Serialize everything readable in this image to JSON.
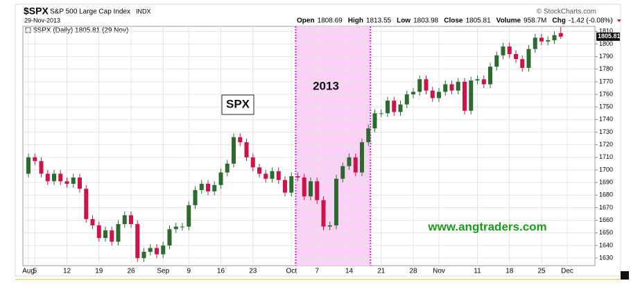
{
  "chart_data": {
    "type": "candlestick",
    "symbol": "$SPX",
    "name": "S&P 500 Large Cap Index",
    "exchange": "INDX",
    "date": "29-Nov-2013",
    "source": "© StockCharts.com",
    "quote": [
      {
        "label": "Open",
        "value": 1808.69
      },
      {
        "label": "High",
        "value": 1813.55
      },
      {
        "label": "Low",
        "value": 1803.98
      },
      {
        "label": "Close",
        "value": 1805.81
      },
      {
        "label": "Volume",
        "value": "958.7M"
      },
      {
        "label": "Chg",
        "value": "-1.42 (-0.08%)"
      }
    ],
    "legend_text": "$SPX (Daily) 1805.81 (29 Nov)",
    "categories": [
      "Aug",
      "5",
      null,
      null,
      null,
      null,
      "12",
      null,
      null,
      null,
      null,
      "19",
      null,
      null,
      null,
      null,
      "26",
      null,
      null,
      null,
      null,
      "Sep",
      null,
      null,
      null,
      "9",
      null,
      null,
      null,
      null,
      "16",
      null,
      null,
      null,
      null,
      "23",
      null,
      null,
      null,
      null,
      null,
      "Oct",
      null,
      null,
      null,
      "7",
      null,
      null,
      null,
      null,
      "14",
      null,
      null,
      null,
      null,
      "21",
      null,
      null,
      null,
      null,
      "28",
      null,
      null,
      null,
      "Nov",
      null,
      null,
      null,
      null,
      null,
      "11",
      null,
      null,
      null,
      null,
      "18",
      null,
      null,
      null,
      null,
      "25",
      null,
      null,
      null,
      "Dec"
    ],
    "open": [
      1697,
      1710,
      1707,
      1697,
      1691,
      1697,
      1691,
      1689,
      1694,
      1685,
      1661,
      1656,
      1646,
      1652,
      1643,
      1657,
      1664,
      1657,
      1630,
      1635,
      1638,
      1633,
      1640,
      1653,
      1655,
      1655,
      1672,
      1684,
      1689,
      1683,
      1688,
      1698,
      1705,
      1726,
      1722,
      1710,
      1702,
      1697,
      1693,
      1699,
      1692,
      1682,
      1695,
      1694,
      1679,
      1691,
      1676,
      1655,
      1656,
      1693,
      1703,
      1710,
      1698,
      1722,
      1733,
      1745,
      1745,
      1755,
      1746,
      1752,
      1760,
      1762,
      1772,
      1763,
      1757,
      1762,
      1768,
      1763,
      1770,
      1747,
      1771,
      1772,
      1768,
      1782,
      1791,
      1798,
      1792,
      1788,
      1781,
      1796,
      1805,
      1802,
      1803,
      1808.69,
      null
    ],
    "high": [
      1713,
      1713,
      1710,
      1700,
      1700,
      1700,
      1694,
      1697,
      1697,
      1688,
      1664,
      1659,
      1655,
      1655,
      1660,
      1667,
      1667,
      1660,
      1638,
      1641,
      1641,
      1643,
      1656,
      1658,
      1658,
      1675,
      1687,
      1692,
      1692,
      1691,
      1701,
      1708,
      1729,
      1729,
      1725,
      1713,
      1705,
      1700,
      1702,
      1702,
      1695,
      1698,
      1698,
      1697,
      1694,
      1694,
      1679,
      1659,
      1696,
      1706,
      1713,
      1713,
      1725,
      1736,
      1748,
      1748,
      1758,
      1758,
      1755,
      1763,
      1765,
      1775,
      1775,
      1766,
      1765,
      1771,
      1771,
      1773,
      1773,
      1774,
      1775,
      1775,
      1785,
      1794,
      1801,
      1801,
      1795,
      1791,
      1799,
      1808,
      1808,
      1806,
      1810,
      1813.55,
      null
    ],
    "low": [
      1694,
      1704,
      1694,
      1688,
      1688,
      1688,
      1686,
      1686,
      1682,
      1658,
      1653,
      1643,
      1643,
      1640,
      1640,
      1654,
      1654,
      1627,
      1627,
      1632,
      1630,
      1630,
      1637,
      1650,
      1652,
      1652,
      1669,
      1681,
      1680,
      1680,
      1685,
      1695,
      1702,
      1719,
      1707,
      1699,
      1694,
      1690,
      1690,
      1689,
      1679,
      1679,
      1691,
      1676,
      1676,
      1673,
      1652,
      1652,
      1653,
      1690,
      1700,
      1695,
      1695,
      1719,
      1730,
      1742,
      1742,
      1743,
      1743,
      1749,
      1757,
      1759,
      1760,
      1754,
      1754,
      1759,
      1760,
      1760,
      1744,
      1744,
      1768,
      1765,
      1765,
      1779,
      1788,
      1789,
      1785,
      1778,
      1778,
      1793,
      1799,
      1799,
      1800,
      1803.98,
      null
    ],
    "close": [
      1710,
      1707,
      1697,
      1691,
      1697,
      1691,
      1689,
      1694,
      1685,
      1661,
      1656,
      1646,
      1652,
      1643,
      1657,
      1664,
      1657,
      1630,
      1635,
      1638,
      1633,
      1640,
      1653,
      1655,
      1655,
      1672,
      1684,
      1689,
      1683,
      1688,
      1698,
      1705,
      1726,
      1722,
      1710,
      1702,
      1697,
      1693,
      1699,
      1692,
      1682,
      1695,
      1694,
      1679,
      1691,
      1676,
      1655,
      1656,
      1693,
      1703,
      1710,
      1698,
      1722,
      1733,
      1745,
      1745,
      1755,
      1746,
      1752,
      1760,
      1762,
      1772,
      1763,
      1757,
      1762,
      1768,
      1763,
      1770,
      1747,
      1771,
      1772,
      1768,
      1782,
      1791,
      1798,
      1792,
      1788,
      1781,
      1796,
      1805,
      1802,
      1803,
      1807,
      1805.81,
      null
    ],
    "up_color": "#2d6a2d",
    "down_color": "#cc1448",
    "ylim": [
      1624,
      1814
    ],
    "yticks": [
      1630,
      1640,
      1650,
      1660,
      1670,
      1680,
      1690,
      1700,
      1710,
      1720,
      1730,
      1740,
      1750,
      1760,
      1770,
      1780,
      1790,
      1800,
      1810
    ],
    "grid": true,
    "highlight": {
      "from": 42,
      "to": 53,
      "color": "#f9d2f5",
      "border_color": "#dd22dd"
    },
    "annotations": [
      {
        "text": "SPX"
      },
      {
        "text": "2013"
      },
      {
        "text": "www.angtraders.com",
        "color": "#1a9c1a"
      }
    ]
  }
}
